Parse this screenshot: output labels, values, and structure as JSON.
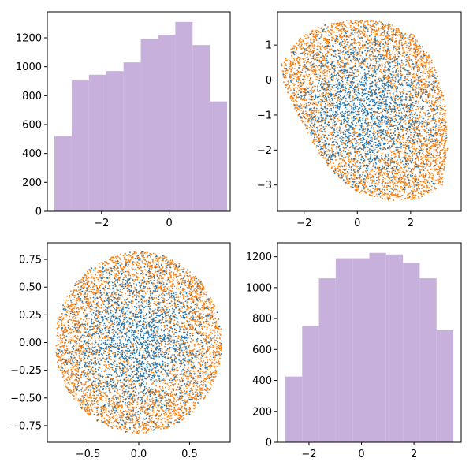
{
  "colors": {
    "hist_fill": "#c7b0dc",
    "series_blue": "#1f77b4",
    "series_orange": "#ff7f0e",
    "axes": "#000000",
    "background": "#ffffff"
  },
  "chart_data": [
    {
      "type": "bar",
      "xlim": [
        -3.6,
        1.8
      ],
      "ylim": [
        0,
        1380
      ],
      "xticks": [
        -2,
        0
      ],
      "xtick_labels": [
        "−2",
        "0"
      ],
      "yticks": [
        0,
        200,
        400,
        600,
        800,
        1000,
        1200
      ],
      "ytick_labels": [
        "0",
        "200",
        "400",
        "600",
        "800",
        "1000",
        "1200"
      ],
      "bins": [
        [
          -3.39,
          -2.88,
          520
        ],
        [
          -2.88,
          -2.37,
          905
        ],
        [
          -2.37,
          -1.86,
          945
        ],
        [
          -1.86,
          -1.35,
          970
        ],
        [
          -1.35,
          -0.84,
          1030
        ],
        [
          -0.84,
          -0.33,
          1190
        ],
        [
          -0.33,
          0.18,
          1220
        ],
        [
          0.18,
          0.69,
          1310
        ],
        [
          0.69,
          1.2,
          1150
        ],
        [
          1.2,
          1.71,
          760
        ]
      ],
      "grid": false
    },
    {
      "type": "scatter",
      "xlim": [
        -3.0,
        3.9
      ],
      "ylim": [
        -3.75,
        1.95
      ],
      "xticks": [
        -2,
        0,
        2
      ],
      "xtick_labels": [
        "−2",
        "0",
        "2"
      ],
      "yticks": [
        -3,
        -2,
        -1,
        0,
        1
      ],
      "ytick_labels": [
        "−3",
        "−2",
        "−1",
        "0",
        "1"
      ],
      "shape": "blob",
      "outline": [
        [
          -2.2,
          1.2
        ],
        [
          -1.4,
          1.55
        ],
        [
          -0.3,
          1.72
        ],
        [
          1.0,
          1.68
        ],
        [
          2.1,
          1.3
        ],
        [
          2.8,
          0.6
        ],
        [
          3.3,
          -0.6
        ],
        [
          3.4,
          -1.9
        ],
        [
          3.2,
          -3.0
        ],
        [
          2.4,
          -3.4
        ],
        [
          1.2,
          -3.45
        ],
        [
          0.0,
          -3.2
        ],
        [
          -1.0,
          -2.6
        ],
        [
          -1.6,
          -1.9
        ],
        [
          -2.1,
          -1.2
        ],
        [
          -2.75,
          -0.2
        ],
        [
          -2.85,
          0.5
        ]
      ],
      "series": [
        {
          "color": "#ff7f0e",
          "distribution": "edge-weighted",
          "approx_points": 4000
        },
        {
          "color": "#1f77b4",
          "distribution": "center-weighted",
          "approx_points": 2200
        }
      ],
      "grid": false
    },
    {
      "type": "scatter",
      "xlim": [
        -0.9,
        0.9
      ],
      "ylim": [
        -0.9,
        0.9
      ],
      "xticks": [
        -0.5,
        0.0,
        0.5
      ],
      "xtick_labels": [
        "−0.5",
        "0.0",
        "0.5"
      ],
      "yticks": [
        -0.75,
        -0.5,
        -0.25,
        0.0,
        0.25,
        0.5,
        0.75
      ],
      "ytick_labels": [
        "−0.75",
        "−0.50",
        "−0.25",
        "0.00",
        "0.25",
        "0.50",
        "0.75"
      ],
      "shape": "disk",
      "center": [
        0.0,
        0.0
      ],
      "radius": 0.82,
      "series": [
        {
          "color": "#ff7f0e",
          "distribution": "edge-weighted",
          "approx_points": 4000
        },
        {
          "color": "#1f77b4",
          "distribution": "center-weighted",
          "approx_points": 2200
        }
      ],
      "grid": false
    },
    {
      "type": "bar",
      "xlim": [
        -3.2,
        3.8
      ],
      "ylim": [
        0,
        1290
      ],
      "xticks": [
        -2,
        0,
        2
      ],
      "xtick_labels": [
        "−2",
        "0",
        "2"
      ],
      "yticks": [
        0,
        200,
        400,
        600,
        800,
        1000,
        1200
      ],
      "ytick_labels": [
        "0",
        "200",
        "400",
        "600",
        "800",
        "1000",
        "1200"
      ],
      "bins": [
        [
          -2.9,
          -2.26,
          425
        ],
        [
          -2.26,
          -1.62,
          750
        ],
        [
          -1.62,
          -0.98,
          1060
        ],
        [
          -0.98,
          -0.34,
          1190
        ],
        [
          -0.34,
          0.3,
          1190
        ],
        [
          0.3,
          0.94,
          1225
        ],
        [
          0.94,
          1.58,
          1215
        ],
        [
          1.58,
          2.22,
          1160
        ],
        [
          2.22,
          2.86,
          1060
        ],
        [
          2.86,
          3.5,
          725
        ]
      ],
      "grid": false
    }
  ]
}
